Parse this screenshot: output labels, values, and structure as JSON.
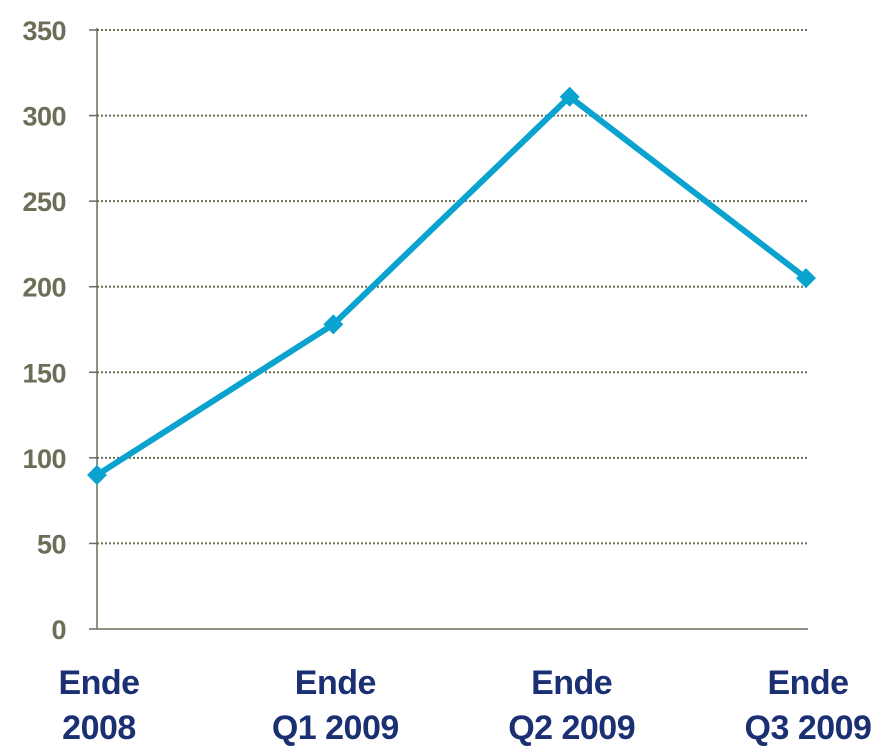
{
  "chart_data": {
    "type": "line",
    "categories": [
      [
        "Ende",
        "2008"
      ],
      [
        "Ende",
        "Q1 2009"
      ],
      [
        "Ende",
        "Q2 2009"
      ],
      [
        "Ende",
        "Q3 2009"
      ]
    ],
    "series": [
      {
        "values": [
          90,
          178,
          311,
          205
        ]
      }
    ],
    "ylim": [
      0,
      350
    ],
    "yticks": [
      0,
      50,
      100,
      150,
      200,
      250,
      300,
      350
    ],
    "grid": true,
    "legend": "none",
    "title": "",
    "xlabel": "",
    "ylabel": ""
  },
  "colors": {
    "series": "#0aa3d0",
    "axis_text_y": "#6d6d58",
    "axis_text_x": "#1b2f73",
    "axis_line": "#6d6d58",
    "grid": "#6d6d58"
  }
}
